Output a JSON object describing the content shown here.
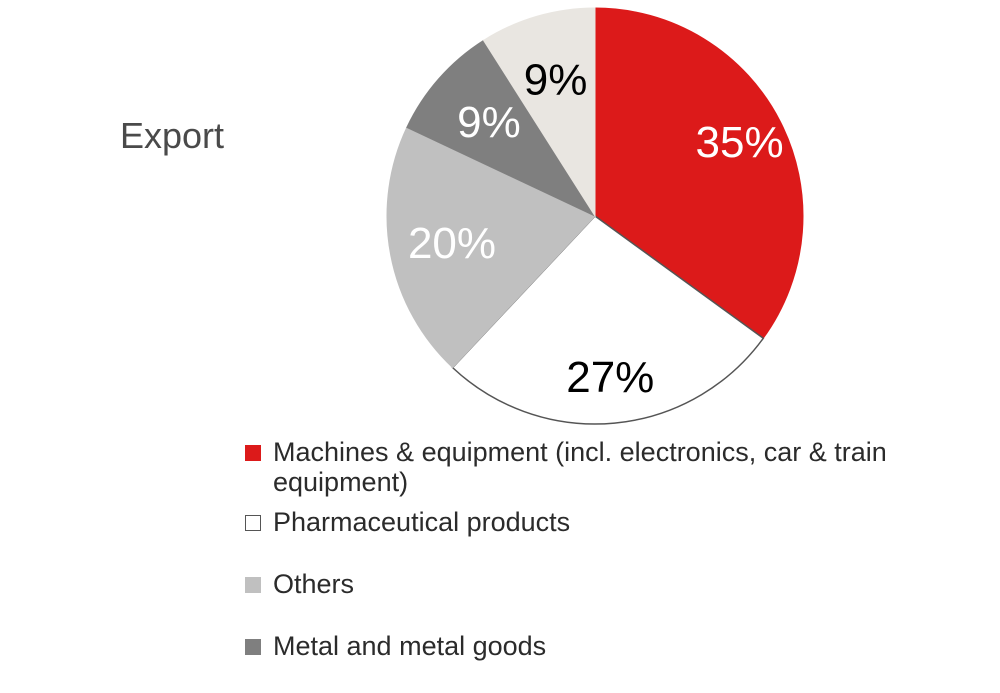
{
  "side_label": "Export",
  "chart_data": {
    "type": "pie",
    "title": "",
    "start": "12 o'clock, clockwise",
    "slices": [
      {
        "name": "Machines & equipment (incl. electronics, car & train equipment)",
        "value": 35,
        "label": "35%",
        "color": "#dc1a1a",
        "label_color": "#ffffff",
        "border": "#dc1a1a"
      },
      {
        "name": "Pharmaceutical products",
        "value": 27,
        "label": "27%",
        "color": "#ffffff",
        "label_color": "#000000",
        "border": "#555555"
      },
      {
        "name": "Others",
        "value": 20,
        "label": "20%",
        "color": "#c0c0c0",
        "label_color": "#ffffff",
        "border": "#c0c0c0"
      },
      {
        "name": "Metal and metal goods",
        "value": 9,
        "label": "9%",
        "color": "#7f7f7f",
        "label_color": "#ffffff",
        "border": "#7f7f7f"
      },
      {
        "name": "",
        "value": 9,
        "label": "9%",
        "color": "#e9e6e1",
        "label_color": "#000000",
        "border": "#e9e6e1"
      }
    ],
    "legend": [
      {
        "label": "Machines & equipment (incl. electronics, car & train equipment)",
        "color": "#dc1a1a",
        "border": "#dc1a1a"
      },
      {
        "label": "Pharmaceutical products",
        "color": "#ffffff",
        "border": "#555555"
      },
      {
        "label": "Others",
        "color": "#c0c0c0",
        "border": "#c0c0c0"
      },
      {
        "label": "Metal and metal goods",
        "color": "#7f7f7f",
        "border": "#7f7f7f"
      }
    ],
    "legend_position": "bottom"
  }
}
